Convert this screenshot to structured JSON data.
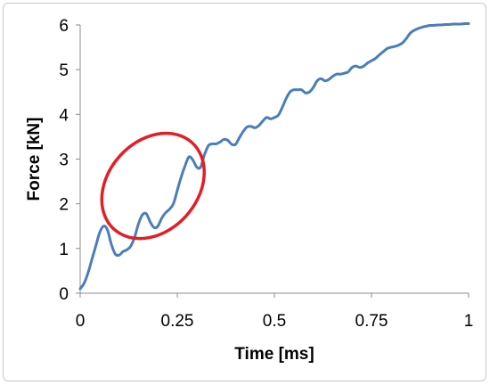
{
  "chart_data": {
    "type": "line",
    "title": "",
    "xlabel": "Time [ms]",
    "ylabel": "Force [kN]",
    "xlim": [
      0,
      1
    ],
    "ylim": [
      0,
      6
    ],
    "xticks": [
      0,
      0.25,
      0.5,
      0.75,
      1
    ],
    "xtick_labels": [
      "0",
      "0.25",
      "0.5",
      "0.75",
      "1"
    ],
    "yticks": [
      0,
      1,
      2,
      3,
      4,
      5,
      6
    ],
    "ytick_labels": [
      "0",
      "1",
      "2",
      "3",
      "4",
      "5",
      "6"
    ],
    "grid": false,
    "series": [
      {
        "name": "",
        "color": "#4a7ebb",
        "x": [
          0,
          0.01,
          0.02,
          0.03,
          0.04,
          0.05,
          0.06,
          0.07,
          0.08,
          0.09,
          0.1,
          0.11,
          0.12,
          0.13,
          0.14,
          0.15,
          0.16,
          0.17,
          0.18,
          0.19,
          0.2,
          0.21,
          0.22,
          0.23,
          0.24,
          0.25,
          0.26,
          0.27,
          0.28,
          0.29,
          0.3,
          0.31,
          0.32,
          0.33,
          0.34,
          0.35,
          0.36,
          0.37,
          0.38,
          0.39,
          0.4,
          0.41,
          0.42,
          0.43,
          0.44,
          0.45,
          0.46,
          0.47,
          0.48,
          0.49,
          0.5,
          0.51,
          0.52,
          0.53,
          0.54,
          0.55,
          0.56,
          0.57,
          0.58,
          0.59,
          0.6,
          0.61,
          0.62,
          0.63,
          0.64,
          0.65,
          0.66,
          0.67,
          0.68,
          0.69,
          0.7,
          0.71,
          0.72,
          0.73,
          0.74,
          0.75,
          0.76,
          0.77,
          0.78,
          0.79,
          0.8,
          0.81,
          0.82,
          0.83,
          0.84,
          0.85,
          0.86,
          0.87,
          0.88,
          0.89,
          0.9,
          0.91,
          0.92,
          0.93,
          0.94,
          0.95,
          0.96,
          0.97,
          0.98,
          0.99,
          1.0
        ],
        "y": [
          0.1,
          0.22,
          0.45,
          0.75,
          1.05,
          1.35,
          1.5,
          1.42,
          1.1,
          0.88,
          0.85,
          0.93,
          0.97,
          1.05,
          1.25,
          1.55,
          1.75,
          1.78,
          1.6,
          1.47,
          1.5,
          1.68,
          1.8,
          1.88,
          2.0,
          2.3,
          2.6,
          2.85,
          3.05,
          2.98,
          2.82,
          2.82,
          3.1,
          3.3,
          3.34,
          3.34,
          3.38,
          3.44,
          3.42,
          3.33,
          3.33,
          3.48,
          3.62,
          3.72,
          3.73,
          3.7,
          3.75,
          3.85,
          3.93,
          3.9,
          3.93,
          3.98,
          4.15,
          4.35,
          4.5,
          4.55,
          4.55,
          4.55,
          4.48,
          4.5,
          4.6,
          4.75,
          4.8,
          4.75,
          4.78,
          4.85,
          4.9,
          4.9,
          4.92,
          4.95,
          5.05,
          5.08,
          5.05,
          5.08,
          5.15,
          5.2,
          5.25,
          5.33,
          5.4,
          5.47,
          5.5,
          5.52,
          5.55,
          5.6,
          5.7,
          5.82,
          5.88,
          5.92,
          5.95,
          5.97,
          5.99,
          5.99,
          6.0,
          6.0,
          6.01,
          6.01,
          6.02,
          6.02,
          6.02,
          6.03,
          6.03
        ]
      }
    ],
    "annotations": [
      {
        "type": "ellipse",
        "color": "#e31e24",
        "center_x": 0.1875,
        "center_y": 2.4,
        "radius_x": 0.15,
        "radius_y": 1.0,
        "rotation_deg": -48
      }
    ]
  }
}
